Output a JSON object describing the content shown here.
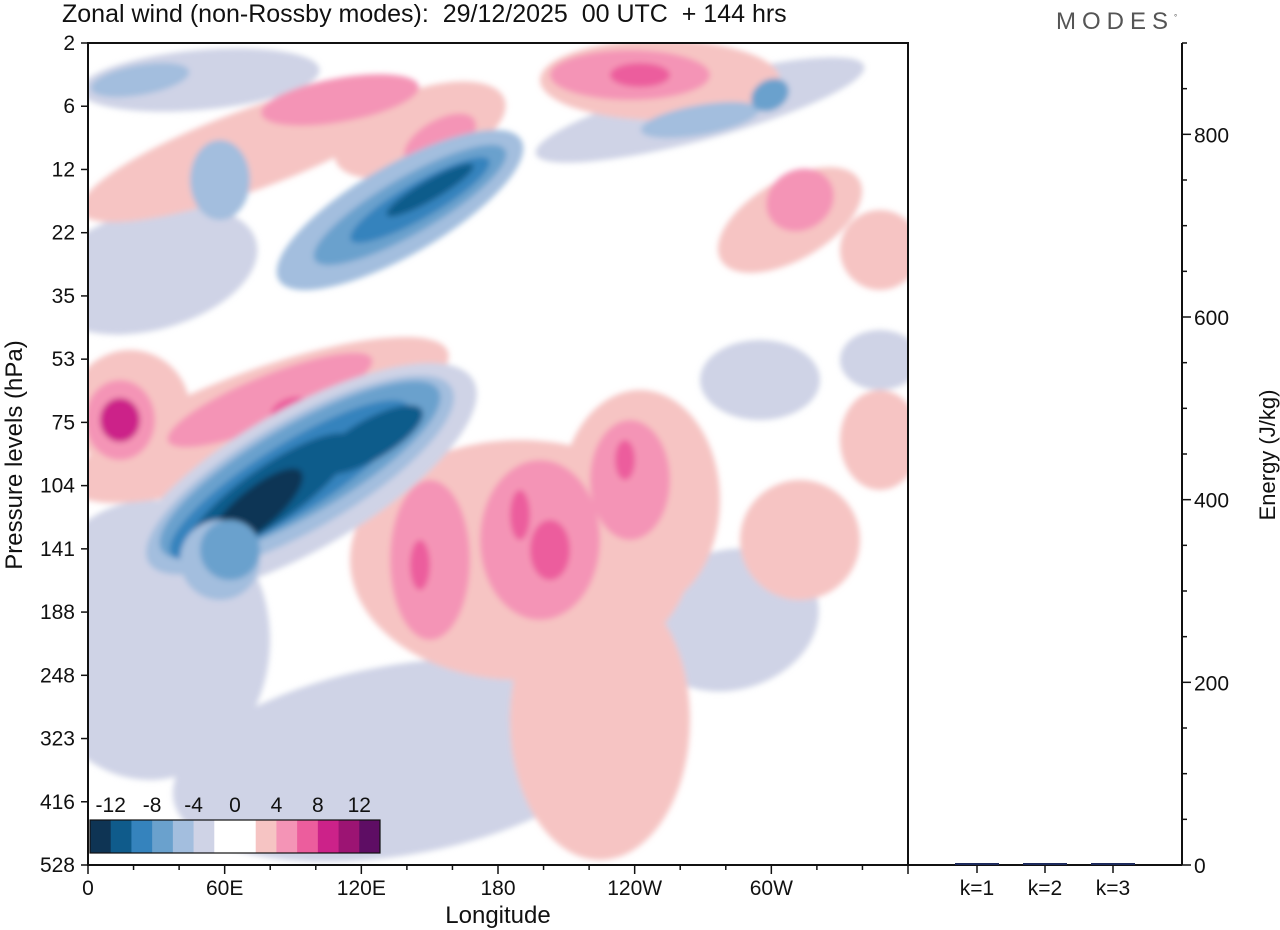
{
  "title": "Zonal wind (non-Rossby modes):  29/12/2025  00 UTC  + 144 hrs",
  "logo": "MODES",
  "colors": {
    "neg": [
      "#0e3454",
      "#0f5b8b",
      "#3583bd",
      "#6aa1cd",
      "#a3bede",
      "#cfd3e6"
    ],
    "pos": [
      "#f6c4c3",
      "#f494b6",
      "#ec5d9d",
      "#cc2289",
      "#9c1473",
      "#5e0d64"
    ]
  },
  "chart_data": [
    {
      "type": "heatmap",
      "title": "Zonal wind (non-Rossby modes)",
      "xlabel": "Longitude",
      "ylabel": "Pressure levels (hPa)",
      "x_ticks": [
        "0",
        "60E",
        "120E",
        "180",
        "120W",
        "60W"
      ],
      "x_range": [
        0,
        360
      ],
      "y_ticks": [
        "2",
        "6",
        "12",
        "22",
        "35",
        "53",
        "75",
        "104",
        "141",
        "188",
        "248",
        "323",
        "416",
        "528"
      ],
      "colorbar": {
        "labels": [
          "-12",
          "-8",
          "-4",
          "0",
          "4",
          "8",
          "12"
        ],
        "levels": [
          -14,
          -12,
          -10,
          -8,
          -6,
          -4,
          -2,
          2,
          4,
          6,
          8,
          10,
          12,
          14
        ]
      },
      "features": [
        {
          "desc": "strong easterly band",
          "lon": [
            60,
            150
          ],
          "level_hPa": [
            75,
            188
          ],
          "min_value": -14
        },
        {
          "desc": "easterly band upper",
          "lon": [
            95,
            185
          ],
          "level_hPa": [
            12,
            35
          ],
          "min_value": -10
        },
        {
          "desc": "westerly maximum",
          "lon": [
            10,
            20
          ],
          "level_hPa": [
            75,
            75
          ],
          "max_value": 10
        },
        {
          "desc": "westerly region",
          "lon": [
            135,
            230
          ],
          "level_hPa": [
            104,
            248
          ],
          "max_value": 8
        }
      ]
    },
    {
      "type": "bar",
      "ylabel": "Energy (J/kg)",
      "categories": [
        "k=1",
        "k=2",
        "k=3"
      ],
      "values": [
        2,
        1,
        1
      ],
      "y_ticks": [
        "0",
        "200",
        "400",
        "600",
        "800"
      ],
      "ylim": [
        0,
        900
      ]
    }
  ]
}
